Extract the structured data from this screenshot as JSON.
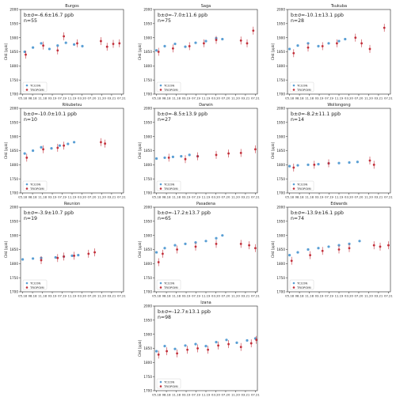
{
  "colors": {
    "tccon": "#5a9fd4",
    "tropomi": "#c22f3a",
    "axis": "#222222",
    "legend_border": "#cccccc"
  },
  "chart_data": [
    {
      "type": "scatter",
      "title": "Burgos",
      "ylabel": "CH4 [ppb]",
      "annotation": "b±σ=-6.6±16.7 ppb",
      "n_text": "n=55",
      "ylim": [
        1700,
        2000
      ],
      "yticks": [
        1700,
        1750,
        1800,
        1850,
        1900,
        1950,
        2000
      ],
      "xticks": [
        "05.18",
        "08.18",
        "11.18",
        "03.19",
        "07.19",
        "11.19",
        "03.20",
        "07.20",
        "11.20",
        "03.21",
        "07.21"
      ],
      "legend": [
        "TCCON",
        "TROPOMI"
      ],
      "legend_position": "lower-left",
      "series": [
        {
          "name": "TCCON",
          "x": [
            0.04,
            0.12,
            0.2,
            0.28,
            0.36,
            0.44,
            0.52,
            0.6
          ],
          "y": [
            1850,
            1865,
            1880,
            1860,
            1872,
            1882,
            1876,
            1870
          ]
        },
        {
          "name": "TROPOMI",
          "x": [
            0.05,
            0.22,
            0.36,
            0.42,
            0.55,
            0.78,
            0.84,
            0.9,
            0.96
          ],
          "y": [
            1840,
            1872,
            1855,
            1905,
            1880,
            1888,
            1868,
            1878,
            1880
          ]
        }
      ]
    },
    {
      "type": "scatter",
      "title": "Saga",
      "ylabel": "CH4 [ppb]",
      "annotation": "b±σ=-7.0±11.6 ppb",
      "n_text": "n=75",
      "ylim": [
        1700,
        2000
      ],
      "yticks": [
        1700,
        1750,
        1800,
        1850,
        1900,
        1950,
        2000
      ],
      "xticks": [
        "05.18",
        "08.18",
        "11.18",
        "03.19",
        "07.19",
        "11.19",
        "03.20",
        "07.20",
        "11.20",
        "03.21",
        "07.21"
      ],
      "legend": [
        "TCCON",
        "TROPOMI"
      ],
      "legend_position": "lower-left",
      "series": [
        {
          "name": "TCCON",
          "x": [
            0.02,
            0.1,
            0.2,
            0.3,
            0.4,
            0.5,
            0.6,
            0.66
          ],
          "y": [
            1855,
            1870,
            1878,
            1868,
            1882,
            1888,
            1898,
            1895
          ]
        },
        {
          "name": "TROPOMI",
          "x": [
            0.04,
            0.18,
            0.34,
            0.48,
            0.6,
            0.84,
            0.9,
            0.96
          ],
          "y": [
            1850,
            1862,
            1870,
            1880,
            1892,
            1890,
            1880,
            1925
          ]
        }
      ]
    },
    {
      "type": "scatter",
      "title": "Tsukuba",
      "ylabel": "CH4 [ppb]",
      "annotation": "b±σ=-10.1±13.1 ppb",
      "n_text": "n=28",
      "ylim": [
        1700,
        2000
      ],
      "yticks": [
        1700,
        1750,
        1800,
        1850,
        1900,
        1950,
        2000
      ],
      "xticks": [
        "05.18",
        "08.18",
        "11.18",
        "03.19",
        "07.19",
        "11.19",
        "03.20",
        "07.20",
        "11.20",
        "03.21",
        "07.21"
      ],
      "legend": [
        "TCCON",
        "TROPOMI"
      ],
      "legend_position": "lower-left",
      "series": [
        {
          "name": "TCCON",
          "x": [
            0.02,
            0.1,
            0.2,
            0.3,
            0.4,
            0.5,
            0.56
          ],
          "y": [
            1860,
            1872,
            1880,
            1870,
            1880,
            1888,
            1895
          ]
        },
        {
          "name": "TROPOMI",
          "x": [
            0.06,
            0.2,
            0.34,
            0.48,
            0.66,
            0.72,
            0.8,
            0.94
          ],
          "y": [
            1845,
            1865,
            1870,
            1880,
            1900,
            1880,
            1860,
            1935
          ]
        }
      ]
    },
    {
      "type": "scatter",
      "title": "Rikubetsu",
      "ylabel": "CH4 [ppb]",
      "annotation": "b±σ=-10.0±10.1 ppb",
      "n_text": "n=10",
      "ylim": [
        1700,
        2000
      ],
      "yticks": [
        1700,
        1750,
        1800,
        1850,
        1900,
        1950,
        2000
      ],
      "xticks": [
        "05.18",
        "08.18",
        "11.18",
        "03.19",
        "07.19",
        "11.19",
        "03.20",
        "07.20",
        "11.20",
        "03.21",
        "07.21"
      ],
      "legend": [
        "TCCON",
        "TROPOMI"
      ],
      "legend_position": "lower-left",
      "series": [
        {
          "name": "TCCON",
          "x": [
            0.04,
            0.12,
            0.2,
            0.3,
            0.38,
            0.46,
            0.52
          ],
          "y": [
            1840,
            1850,
            1862,
            1858,
            1868,
            1874,
            1880
          ]
        },
        {
          "name": "TROPOMI",
          "x": [
            0.06,
            0.22,
            0.36,
            0.42,
            0.78,
            0.82
          ],
          "y": [
            1825,
            1855,
            1860,
            1868,
            1880,
            1875
          ]
        }
      ]
    },
    {
      "type": "scatter",
      "title": "Darwin",
      "ylabel": "CH4 [ppb]",
      "annotation": "b±σ=-8.5±13.9 ppb",
      "n_text": "n=27",
      "ylim": [
        1700,
        2000
      ],
      "yticks": [
        1700,
        1750,
        1800,
        1850,
        1900,
        1950,
        2000
      ],
      "xticks": [
        "05.18",
        "08.18",
        "11.18",
        "03.19",
        "07.19",
        "11.19",
        "03.20",
        "07.20",
        "11.20",
        "03.21",
        "07.21"
      ],
      "legend": [
        "TCCON",
        "TROPOMI"
      ],
      "legend_position": "lower-left",
      "series": [
        {
          "name": "TCCON",
          "x": [
            0.02,
            0.1,
            0.18,
            0.26,
            0.34,
            0.42
          ],
          "y": [
            1822,
            1825,
            1828,
            1830,
            1835,
            1830
          ]
        },
        {
          "name": "TROPOMI",
          "x": [
            0.14,
            0.3,
            0.42,
            0.6,
            0.72,
            0.84,
            0.98
          ],
          "y": [
            1825,
            1820,
            1830,
            1835,
            1840,
            1842,
            1855
          ]
        }
      ]
    },
    {
      "type": "scatter",
      "title": "Wollongong",
      "ylabel": "CH4 [ppb]",
      "annotation": "b±σ=-8.2±11.1 ppb",
      "n_text": "n=14",
      "ylim": [
        1700,
        2000
      ],
      "yticks": [
        1700,
        1750,
        1800,
        1850,
        1900,
        1950,
        2000
      ],
      "xticks": [
        "05.18",
        "08.18",
        "11.18",
        "03.19",
        "07.19",
        "11.19",
        "03.20",
        "07.20",
        "11.20",
        "03.21",
        "07.21"
      ],
      "legend": [
        "TCCON",
        "TROPOMI"
      ],
      "legend_position": "lower-left",
      "series": [
        {
          "name": "TCCON",
          "x": [
            0.02,
            0.1,
            0.2,
            0.3,
            0.4,
            0.5,
            0.6,
            0.68
          ],
          "y": [
            1795,
            1798,
            1800,
            1802,
            1805,
            1806,
            1808,
            1810
          ]
        },
        {
          "name": "TROPOMI",
          "x": [
            0.06,
            0.26,
            0.4,
            0.8,
            0.84
          ],
          "y": [
            1790,
            1800,
            1805,
            1815,
            1800
          ]
        }
      ]
    },
    {
      "type": "scatter",
      "title": "Reunion",
      "ylabel": "CH4 [ppb]",
      "annotation": "b±σ=-3.9±10.7 ppb",
      "n_text": "n=19",
      "ylim": [
        1700,
        2000
      ],
      "yticks": [
        1700,
        1750,
        1800,
        1850,
        1900,
        1950,
        2000
      ],
      "xticks": [
        "05.18",
        "08.18",
        "11.18",
        "03.19",
        "07.19",
        "11.19",
        "03.20",
        "07.20",
        "11.20",
        "03.21",
        "07.21"
      ],
      "legend": [
        "TCCON",
        "TROPOMI"
      ],
      "legend_position": "lower-left",
      "series": [
        {
          "name": "TCCON",
          "x": [
            0.02,
            0.12,
            0.2,
            0.34,
            0.42,
            0.5,
            0.56
          ],
          "y": [
            1815,
            1818,
            1820,
            1822,
            1825,
            1828,
            1830
          ]
        },
        {
          "name": "TROPOMI",
          "x": [
            0.2,
            0.36,
            0.42,
            0.52,
            0.66,
            0.72
          ],
          "y": [
            1812,
            1820,
            1825,
            1828,
            1835,
            1840
          ]
        }
      ]
    },
    {
      "type": "scatter",
      "title": "Pasadena",
      "ylabel": "CH4 [ppb]",
      "annotation": "b±σ=-17.2±13.7 ppb",
      "n_text": "n=65",
      "ylim": [
        1700,
        2000
      ],
      "yticks": [
        1700,
        1750,
        1800,
        1850,
        1900,
        1950,
        2000
      ],
      "xticks": [
        "05.18",
        "08.18",
        "11.18",
        "03.19",
        "07.19",
        "11.19",
        "03.20",
        "07.20",
        "11.20",
        "03.21",
        "07.21"
      ],
      "legend": [
        "TCCON",
        "TROPOMI"
      ],
      "legend_position": "lower-left",
      "series": [
        {
          "name": "TCCON",
          "x": [
            0.02,
            0.1,
            0.2,
            0.3,
            0.4,
            0.5,
            0.6,
            0.66
          ],
          "y": [
            1840,
            1855,
            1865,
            1870,
            1875,
            1880,
            1890,
            1900
          ]
        },
        {
          "name": "TROPOMI",
          "x": [
            0.04,
            0.08,
            0.22,
            0.4,
            0.6,
            0.84,
            0.92,
            0.98
          ],
          "y": [
            1805,
            1835,
            1850,
            1860,
            1870,
            1870,
            1865,
            1855
          ]
        }
      ]
    },
    {
      "type": "scatter",
      "title": "Edwards",
      "ylabel": "CH4 [ppb]",
      "annotation": "b±σ=-13.9±16.1 ppb",
      "n_text": "n=74",
      "ylim": [
        1700,
        2000
      ],
      "yticks": [
        1700,
        1750,
        1800,
        1850,
        1900,
        1950,
        2000
      ],
      "xticks": [
        "05.18",
        "08.18",
        "11.18",
        "03.19",
        "07.19",
        "11.19",
        "03.20",
        "07.20",
        "11.20",
        "03.21",
        "07.21"
      ],
      "legend": [
        "TCCON",
        "TROPOMI"
      ],
      "legend_position": "lower-left",
      "series": [
        {
          "name": "TCCON",
          "x": [
            0.02,
            0.1,
            0.2,
            0.3,
            0.4,
            0.5,
            0.6,
            0.7
          ],
          "y": [
            1830,
            1840,
            1850,
            1855,
            1860,
            1865,
            1870,
            1880
          ]
        },
        {
          "name": "TROPOMI",
          "x": [
            0.04,
            0.22,
            0.34,
            0.5,
            0.6,
            0.84,
            0.9,
            0.98
          ],
          "y": [
            1810,
            1830,
            1845,
            1850,
            1855,
            1865,
            1860,
            1865
          ]
        }
      ]
    },
    {
      "type": "scatter",
      "title": "Izana",
      "ylabel": "CH4 [ppb]",
      "annotation": "b±σ=-12.7±13.1 ppb",
      "n_text": "n=98",
      "ylim": [
        1700,
        2000
      ],
      "yticks": [
        1700,
        1750,
        1800,
        1850,
        1900,
        1950,
        2000
      ],
      "xticks": [
        "05.18",
        "08.18",
        "11.18",
        "03.19",
        "07.19",
        "11.19",
        "03.20",
        "07.20",
        "11.20",
        "03.21",
        "07.21"
      ],
      "legend": [
        "TCCON",
        "TROPOMI"
      ],
      "legend_position": "lower-left",
      "series": [
        {
          "name": "TCCON",
          "x": [
            0.02,
            0.1,
            0.2,
            0.3,
            0.4,
            0.5,
            0.6,
            0.7,
            0.8,
            0.9,
            0.98
          ],
          "y": [
            1840,
            1858,
            1848,
            1860,
            1865,
            1858,
            1872,
            1880,
            1870,
            1878,
            1885
          ]
        },
        {
          "name": "TROPOMI",
          "x": [
            0.04,
            0.12,
            0.22,
            0.32,
            0.42,
            0.52,
            0.62,
            0.72,
            0.84,
            0.94,
            0.99
          ],
          "y": [
            1828,
            1840,
            1832,
            1845,
            1850,
            1845,
            1860,
            1865,
            1855,
            1868,
            1880
          ]
        }
      ]
    }
  ]
}
